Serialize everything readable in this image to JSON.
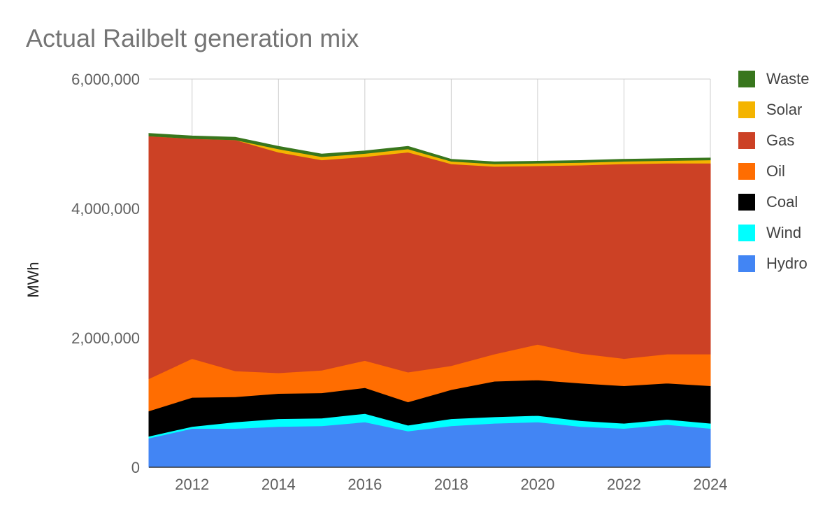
{
  "chart_data": {
    "type": "area",
    "stacked": true,
    "title": "Actual Railbelt generation mix",
    "xlabel": "",
    "ylabel": "MWh",
    "x": [
      2011,
      2012,
      2013,
      2014,
      2015,
      2016,
      2017,
      2018,
      2019,
      2020,
      2021,
      2022,
      2023,
      2024
    ],
    "xticks": [
      "2012",
      "2014",
      "2016",
      "2018",
      "2020",
      "2022",
      "2024"
    ],
    "yticks": [
      "0",
      "2,000,000",
      "4,000,000",
      "6,000,000"
    ],
    "ylim": [
      0,
      6000000
    ],
    "grid": true,
    "legend_position": "right",
    "series": [
      {
        "name": "Hydro",
        "color": "#4285f4",
        "values": [
          450000,
          600000,
          600000,
          630000,
          640000,
          700000,
          560000,
          640000,
          680000,
          700000,
          630000,
          600000,
          660000,
          600000
        ]
      },
      {
        "name": "Wind",
        "color": "#00ffff",
        "values": [
          30000,
          30000,
          100000,
          120000,
          120000,
          130000,
          90000,
          110000,
          100000,
          100000,
          90000,
          80000,
          80000,
          80000
        ]
      },
      {
        "name": "Coal",
        "color": "#000000",
        "values": [
          390000,
          450000,
          390000,
          390000,
          390000,
          400000,
          360000,
          450000,
          550000,
          550000,
          580000,
          580000,
          560000,
          580000
        ]
      },
      {
        "name": "Oil",
        "color": "#ff6d01",
        "values": [
          500000,
          600000,
          400000,
          320000,
          350000,
          420000,
          460000,
          370000,
          420000,
          550000,
          460000,
          420000,
          450000,
          490000
        ]
      },
      {
        "name": "Gas",
        "color": "#cc4125",
        "values": [
          3750000,
          3400000,
          3570000,
          3410000,
          3250000,
          3150000,
          3400000,
          3120000,
          2900000,
          2760000,
          2910000,
          3010000,
          2950000,
          2950000
        ]
      },
      {
        "name": "Solar",
        "color": "#f4b400",
        "values": [
          0,
          0,
          0,
          50000,
          50000,
          50000,
          50000,
          40000,
          40000,
          40000,
          40000,
          40000,
          40000,
          50000
        ]
      },
      {
        "name": "Waste",
        "color": "#38761d",
        "values": [
          40000,
          40000,
          40000,
          40000,
          40000,
          40000,
          40000,
          30000,
          30000,
          30000,
          30000,
          30000,
          30000,
          30000
        ]
      }
    ],
    "legend_order": [
      "Waste",
      "Solar",
      "Gas",
      "Oil",
      "Coal",
      "Wind",
      "Hydro"
    ]
  }
}
